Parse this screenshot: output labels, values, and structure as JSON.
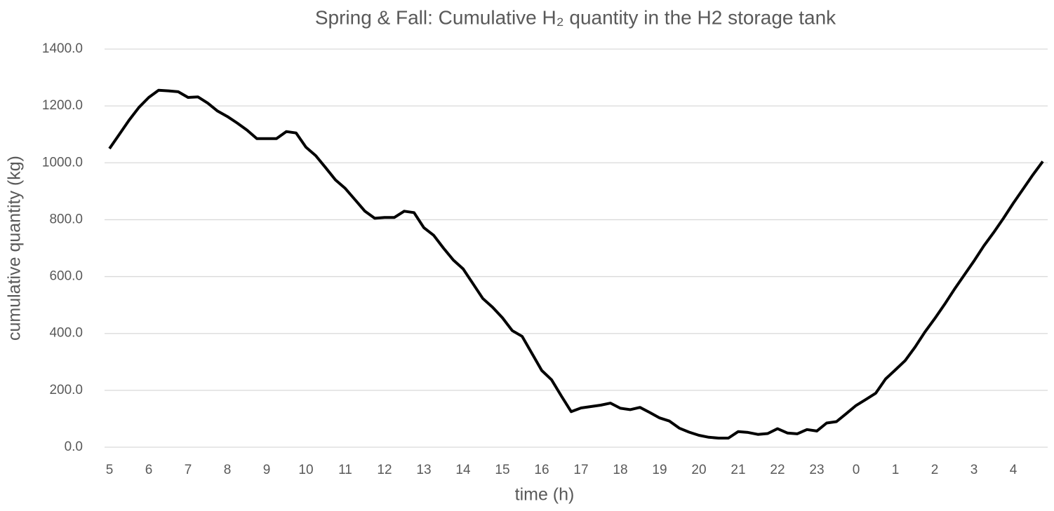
{
  "chart_data": {
    "type": "line",
    "title": "Spring & Fall: Cumulative H₂ quantity in the H2 storage tank",
    "x_label": "time (h)",
    "y_label": "cumulative quantity (kg)",
    "categories": [
      "5",
      null,
      null,
      null,
      "6",
      null,
      null,
      null,
      "7",
      null,
      null,
      null,
      "8",
      null,
      null,
      null,
      "9",
      null,
      null,
      null,
      "10",
      null,
      null,
      null,
      "11",
      null,
      null,
      null,
      "12",
      null,
      null,
      null,
      "13",
      null,
      null,
      null,
      "14",
      null,
      null,
      null,
      "15",
      null,
      null,
      null,
      "16",
      null,
      null,
      null,
      "17",
      null,
      null,
      null,
      "18",
      null,
      null,
      null,
      "19",
      null,
      null,
      null,
      "20",
      null,
      null,
      null,
      "21",
      null,
      null,
      null,
      "22",
      null,
      null,
      null,
      "23",
      null,
      null,
      null,
      "0",
      null,
      null,
      null,
      "1",
      null,
      null,
      null,
      "2",
      null,
      null,
      null,
      "3",
      null,
      null,
      null,
      "4",
      null,
      null,
      null
    ],
    "values": [
      1050,
      1100,
      1150,
      1195,
      1230,
      1255,
      1253,
      1250,
      1230,
      1232,
      1210,
      1182,
      1163,
      1140,
      1115,
      1085,
      1085,
      1085,
      1110,
      1105,
      1055,
      1025,
      983,
      940,
      910,
      870,
      830,
      805,
      808,
      808,
      830,
      825,
      772,
      745,
      700,
      658,
      627,
      575,
      523,
      492,
      455,
      410,
      390,
      330,
      270,
      237,
      180,
      125,
      138,
      143,
      148,
      155,
      137,
      132,
      140,
      122,
      103,
      92,
      67,
      53,
      42,
      35,
      32,
      32,
      55,
      52,
      45,
      48,
      65,
      50,
      47,
      62,
      57,
      85,
      90,
      118,
      147,
      168,
      190,
      240,
      272,
      305,
      352,
      405,
      452,
      502,
      555,
      605,
      655,
      708,
      755,
      805,
      858,
      908,
      958,
      1005
    ],
    "color": "#000000",
    "ylim": [
      0,
      1400
    ],
    "yticks": [
      {
        "value": 0,
        "label": "0.0"
      },
      {
        "value": 200,
        "label": "200.0"
      },
      {
        "value": 400,
        "label": "400.0"
      },
      {
        "value": 600,
        "label": "600.0"
      },
      {
        "value": 800,
        "label": "800.0"
      },
      {
        "value": 1000,
        "label": "1000.0"
      },
      {
        "value": 1200,
        "label": "1200.0"
      },
      {
        "value": 1400,
        "label": "1400.0"
      }
    ],
    "grid": true
  }
}
